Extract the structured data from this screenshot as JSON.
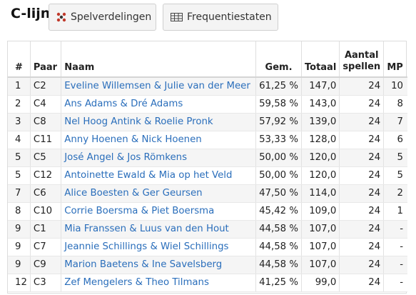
{
  "header": {
    "title": "C-lijn",
    "tabs": [
      {
        "label": "Spelverdelingen",
        "icon": "distribution-icon"
      },
      {
        "label": "Frequentiestaten",
        "icon": "table-icon"
      }
    ]
  },
  "table": {
    "headers": {
      "nr": "#",
      "paar": "Paar",
      "naam": "Naam",
      "gem": "Gem.",
      "totaal": "Totaal",
      "spellen_line1": "Aantal",
      "spellen_line2": "spellen",
      "mp": "MP"
    },
    "rows": [
      {
        "nr": "1",
        "paar": "C2",
        "naam": "Eveline Willemsen & Julie van der Meer",
        "gem": "61,25 %",
        "totaal": "147,0",
        "spellen": "24",
        "mp": "10"
      },
      {
        "nr": "2",
        "paar": "C4",
        "naam": "Ans Adams & Dré Adams",
        "gem": "59,58 %",
        "totaal": "143,0",
        "spellen": "24",
        "mp": "8"
      },
      {
        "nr": "3",
        "paar": "C8",
        "naam": "Nel Hoog Antink & Roelie Pronk",
        "gem": "57,92 %",
        "totaal": "139,0",
        "spellen": "24",
        "mp": "7"
      },
      {
        "nr": "4",
        "paar": "C11",
        "naam": "Anny Hoenen & Nick Hoenen",
        "gem": "53,33 %",
        "totaal": "128,0",
        "spellen": "24",
        "mp": "6"
      },
      {
        "nr": "5",
        "paar": "C5",
        "naam": "José Angel & Jos Römkens",
        "gem": "50,00 %",
        "totaal": "120,0",
        "spellen": "24",
        "mp": "5"
      },
      {
        "nr": "5",
        "paar": "C12",
        "naam": "Antoinette Ewald & Mia op het Veld",
        "gem": "50,00 %",
        "totaal": "120,0",
        "spellen": "24",
        "mp": "5"
      },
      {
        "nr": "7",
        "paar": "C6",
        "naam": "Alice Boesten & Ger Geursen",
        "gem": "47,50 %",
        "totaal": "114,0",
        "spellen": "24",
        "mp": "2"
      },
      {
        "nr": "8",
        "paar": "C10",
        "naam": "Corrie Boersma & Piet Boersma",
        "gem": "45,42 %",
        "totaal": "109,0",
        "spellen": "24",
        "mp": "1"
      },
      {
        "nr": "9",
        "paar": "C1",
        "naam": "Mia Franssen & Luus van den Hout",
        "gem": "44,58 %",
        "totaal": "107,0",
        "spellen": "24",
        "mp": "-"
      },
      {
        "nr": "9",
        "paar": "C7",
        "naam": "Jeannie Schillings & Wiel Schillings",
        "gem": "44,58 %",
        "totaal": "107,0",
        "spellen": "24",
        "mp": "-"
      },
      {
        "nr": "9",
        "paar": "C9",
        "naam": "Marion Baetens & Ine Savelsberg",
        "gem": "44,58 %",
        "totaal": "107,0",
        "spellen": "24",
        "mp": "-"
      },
      {
        "nr": "12",
        "paar": "C3",
        "naam": "Zef Mengelers & Theo Tilmans",
        "gem": "41,25 %",
        "totaal": "99,0",
        "spellen": "24",
        "mp": "-"
      }
    ]
  },
  "colors": {
    "link": "#2a6ebb",
    "distribution_icon": "#c0392b",
    "row_stripe": "#f5f5f5"
  }
}
